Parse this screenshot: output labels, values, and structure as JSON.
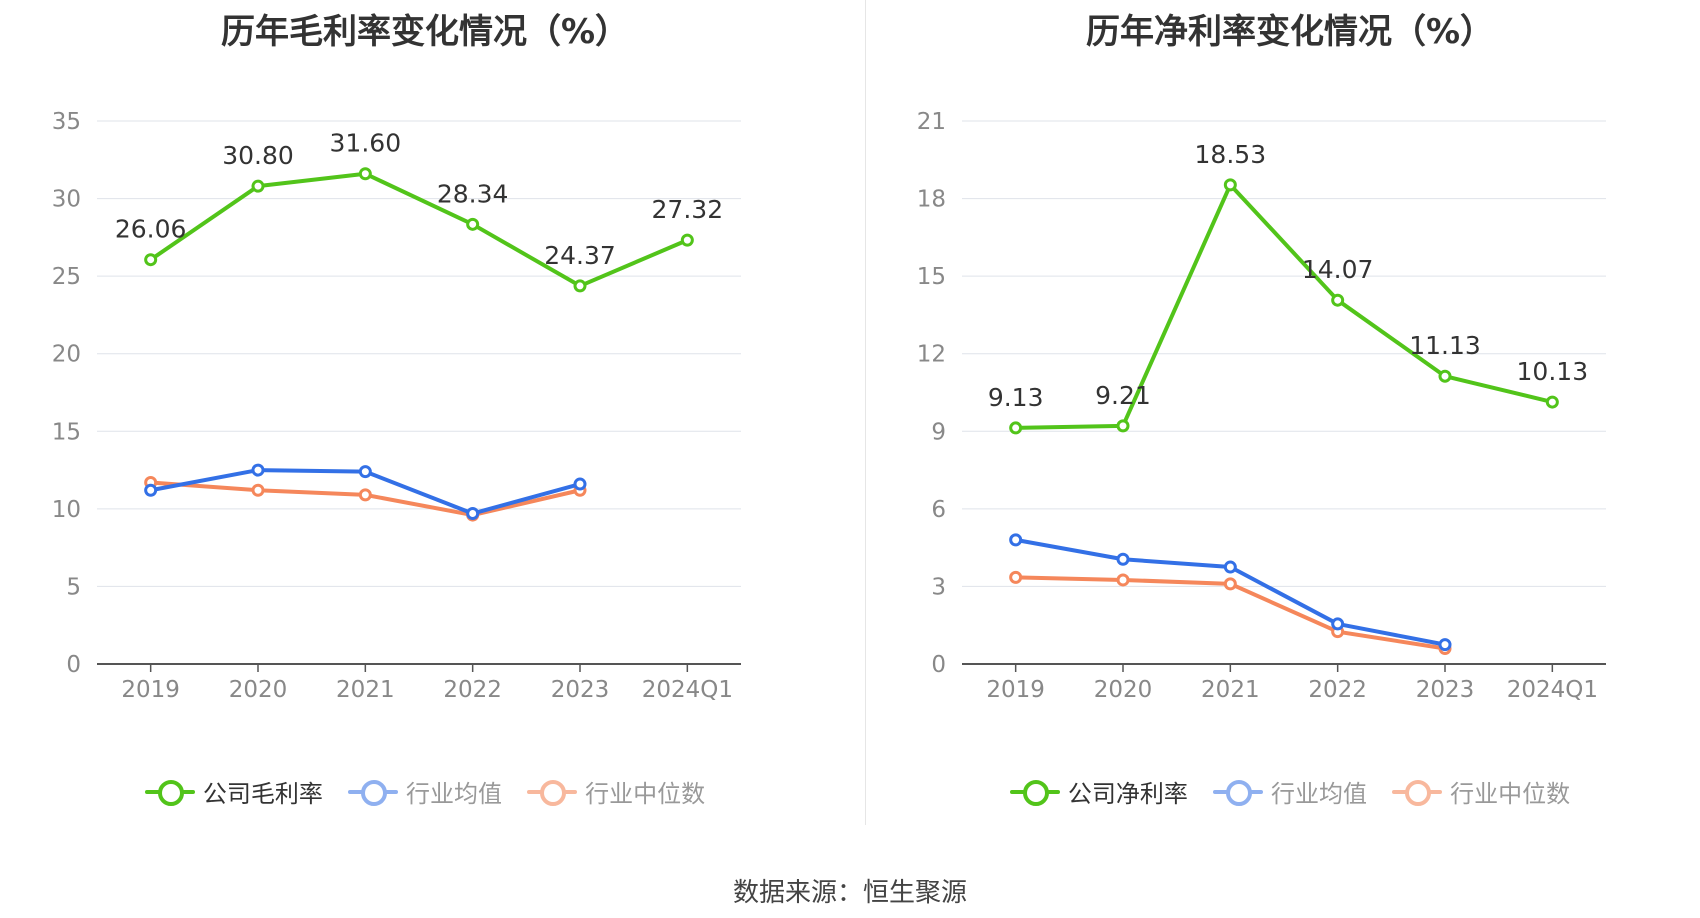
{
  "source": "数据来源：恒生聚源",
  "colors": {
    "company": "#52c41a",
    "avg": "#3370e6",
    "median": "#f5875b",
    "grid": "#dfe3ea",
    "axis": "#555555",
    "tick": "#888888"
  },
  "chart_data": [
    {
      "type": "line",
      "title": "历年毛利率变化情况（%）",
      "categories": [
        "2019",
        "2020",
        "2021",
        "2022",
        "2023",
        "2024Q1"
      ],
      "yticks": [
        "0",
        "5",
        "10",
        "15",
        "20",
        "25",
        "30",
        "35"
      ],
      "ylim": [
        0,
        35
      ],
      "grid": true,
      "legend_position": "bottom",
      "series": [
        {
          "name": "公司毛利率",
          "values": [
            26.06,
            30.8,
            31.6,
            28.34,
            24.37,
            27.32
          ],
          "labels": [
            "26.06",
            "30.80",
            "31.60",
            "28.34",
            "24.37",
            "27.32"
          ]
        },
        {
          "name": "行业均值",
          "values": [
            11.2,
            12.5,
            12.4,
            9.7,
            11.6,
            null
          ]
        },
        {
          "name": "行业中位数",
          "values": [
            11.7,
            11.2,
            10.9,
            9.6,
            11.2,
            null
          ]
        }
      ]
    },
    {
      "type": "line",
      "title": "历年净利率变化情况（%）",
      "categories": [
        "2019",
        "2020",
        "2021",
        "2022",
        "2023",
        "2024Q1"
      ],
      "yticks": [
        "0",
        "3",
        "6",
        "9",
        "12",
        "15",
        "18",
        "21"
      ],
      "ylim": [
        0,
        21
      ],
      "grid": true,
      "legend_position": "bottom",
      "series": [
        {
          "name": "公司净利率",
          "values": [
            9.13,
            9.21,
            18.53,
            14.07,
            11.13,
            10.13
          ],
          "labels": [
            "9.13",
            "9.21",
            "18.53",
            "14.07",
            "11.13",
            "10.13"
          ]
        },
        {
          "name": "行业均值",
          "values": [
            4.8,
            4.05,
            3.75,
            1.55,
            0.75,
            null
          ]
        },
        {
          "name": "行业中位数",
          "values": [
            3.35,
            3.25,
            3.1,
            1.25,
            0.6,
            null
          ]
        }
      ]
    }
  ]
}
